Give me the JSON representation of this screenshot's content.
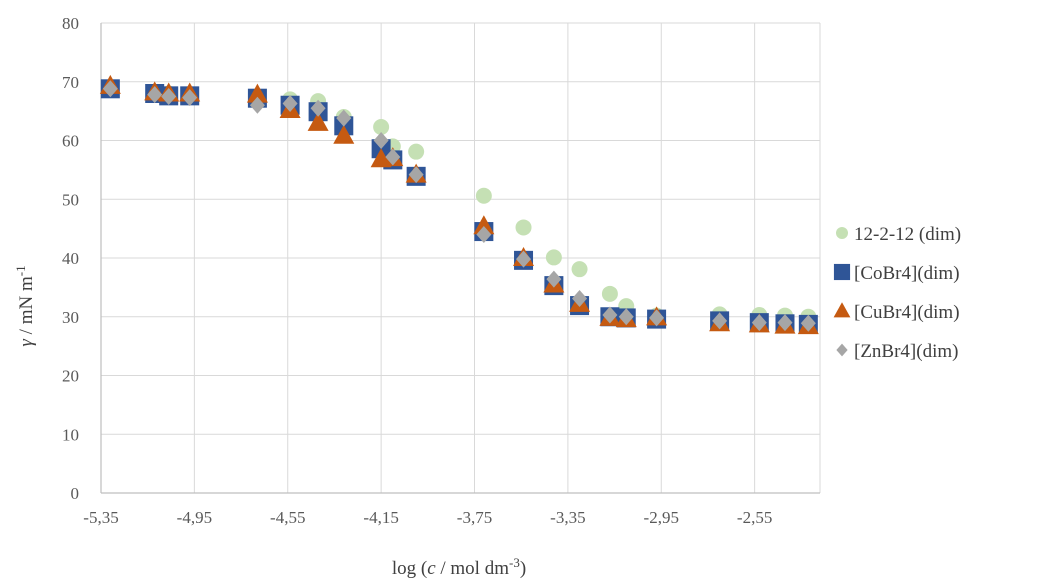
{
  "chart_data": {
    "type": "scatter",
    "title": "",
    "xlabel": {
      "pre": "log (",
      "italic": "c",
      "mid": " / mol dm",
      "sup": "-3",
      "post": ")"
    },
    "ylabel": {
      "italic": "γ",
      "mid": " / mN m",
      "sup": "-1"
    },
    "xlim": [
      -5.35,
      -2.27
    ],
    "ylim": [
      0,
      80
    ],
    "x_ticks": [
      "-5,35",
      "-4,95",
      "-4,55",
      "-4,15",
      "-3,75",
      "-3,35",
      "-2,95",
      "-2,55"
    ],
    "x_tick_values": [
      -5.35,
      -4.95,
      -4.55,
      -4.15,
      -3.75,
      -3.35,
      -2.95,
      -2.55
    ],
    "y_ticks": [
      "0",
      "10",
      "20",
      "30",
      "40",
      "50",
      "60",
      "70",
      "80"
    ],
    "y_tick_values": [
      0,
      10,
      20,
      30,
      40,
      50,
      60,
      70,
      80
    ],
    "grid": true,
    "legend_position": "right",
    "series": [
      {
        "name": "12-2-12 (dim)",
        "marker": "circle",
        "color": "#c5e0b4",
        "points": [
          [
            -5.31,
            69.0
          ],
          [
            -5.12,
            68.2
          ],
          [
            -5.06,
            68.0
          ],
          [
            -4.97,
            67.8
          ],
          [
            -4.68,
            67.5
          ],
          [
            -4.54,
            67.0
          ],
          [
            -4.42,
            66.7
          ],
          [
            -4.31,
            64.0
          ],
          [
            -4.15,
            62.3
          ],
          [
            -4.1,
            59.0
          ],
          [
            -4.0,
            58.1
          ],
          [
            -3.71,
            50.6
          ],
          [
            -3.54,
            45.2
          ],
          [
            -3.41,
            40.1
          ],
          [
            -3.3,
            38.1
          ],
          [
            -3.17,
            33.9
          ],
          [
            -3.1,
            31.8
          ],
          [
            -2.97,
            30.2
          ],
          [
            -2.7,
            30.4
          ],
          [
            -2.53,
            30.3
          ],
          [
            -2.42,
            30.2
          ],
          [
            -2.32,
            30.0
          ]
        ]
      },
      {
        "name": "[CoBr4](dim)",
        "marker": "square",
        "color": "#2f5597",
        "points": [
          [
            -5.31,
            68.8
          ],
          [
            -5.12,
            68.0
          ],
          [
            -5.06,
            67.6
          ],
          [
            -4.97,
            67.6
          ],
          [
            -4.68,
            67.2
          ],
          [
            -4.54,
            66.0
          ],
          [
            -4.42,
            64.9
          ],
          [
            -4.31,
            62.5
          ],
          [
            -4.15,
            58.6
          ],
          [
            -4.1,
            56.7
          ],
          [
            -4.0,
            53.9
          ],
          [
            -3.71,
            44.5
          ],
          [
            -3.54,
            39.6
          ],
          [
            -3.41,
            35.3
          ],
          [
            -3.3,
            31.9
          ],
          [
            -3.17,
            30.0
          ],
          [
            -3.1,
            29.8
          ],
          [
            -2.97,
            29.6
          ],
          [
            -2.7,
            29.3
          ],
          [
            -2.53,
            29.0
          ],
          [
            -2.42,
            28.8
          ],
          [
            -2.32,
            28.7
          ]
        ]
      },
      {
        "name": "[CuBr4](dim)",
        "marker": "triangle",
        "color": "#c55a11",
        "points": [
          [
            -5.31,
            69.3
          ],
          [
            -5.12,
            68.2
          ],
          [
            -5.06,
            68.0
          ],
          [
            -4.97,
            68.0
          ],
          [
            -4.68,
            67.8
          ],
          [
            -4.54,
            65.2
          ],
          [
            -4.42,
            63.0
          ],
          [
            -4.31,
            60.8
          ],
          [
            -4.15,
            56.8
          ],
          [
            -4.1,
            57.0
          ],
          [
            -4.0,
            54.2
          ],
          [
            -3.71,
            45.4
          ],
          [
            -3.54,
            40.0
          ],
          [
            -3.41,
            35.5
          ],
          [
            -3.3,
            32.2
          ],
          [
            -3.17,
            29.8
          ],
          [
            -3.1,
            29.6
          ],
          [
            -2.97,
            29.9
          ],
          [
            -2.7,
            28.9
          ],
          [
            -2.53,
            28.7
          ],
          [
            -2.42,
            28.5
          ],
          [
            -2.32,
            28.4
          ]
        ]
      },
      {
        "name": "[ZnBr4](dim)",
        "marker": "diamond",
        "color": "#a6a6a6",
        "points": [
          [
            -5.31,
            68.8
          ],
          [
            -5.12,
            67.8
          ],
          [
            -5.06,
            67.5
          ],
          [
            -4.97,
            67.3
          ],
          [
            -4.68,
            66.0
          ],
          [
            -4.54,
            66.3
          ],
          [
            -4.42,
            65.5
          ],
          [
            -4.31,
            63.8
          ],
          [
            -4.15,
            60.0
          ],
          [
            -4.1,
            57.2
          ],
          [
            -4.0,
            54.2
          ],
          [
            -3.71,
            44.0
          ],
          [
            -3.54,
            39.8
          ],
          [
            -3.41,
            36.4
          ],
          [
            -3.3,
            33.1
          ],
          [
            -3.17,
            30.3
          ],
          [
            -3.1,
            30.0
          ],
          [
            -2.97,
            29.8
          ],
          [
            -2.7,
            29.3
          ],
          [
            -2.53,
            29.0
          ],
          [
            -2.42,
            29.0
          ],
          [
            -2.32,
            28.9
          ]
        ]
      }
    ]
  }
}
